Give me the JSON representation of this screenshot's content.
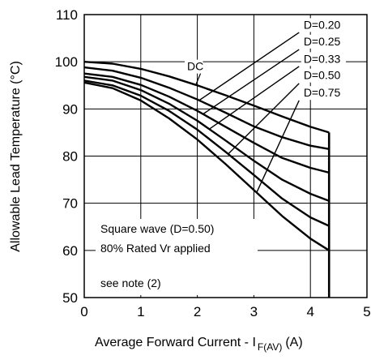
{
  "chart_data": {
    "type": "line",
    "xlabel": "Average Forward Current - I",
    "xlabel_sub": "F(AV)",
    "xlabel_unit": "(A)",
    "ylabel": "Allowable Lead Temperature (°C)",
    "xlim": [
      0,
      5
    ],
    "ylim": [
      50,
      110
    ],
    "xticks": [
      0,
      1,
      2,
      3,
      4,
      5
    ],
    "yticks": [
      50,
      60,
      70,
      80,
      90,
      100,
      110
    ],
    "grid": true,
    "series": [
      {
        "name": "DC",
        "x": [
          0,
          0.5,
          1,
          1.5,
          2,
          2.5,
          3,
          3.5,
          4,
          4.33
        ],
        "y": [
          100,
          99.6,
          98.5,
          96.9,
          95,
          92.9,
          90.7,
          88.4,
          86.2,
          85
        ]
      },
      {
        "name": "D=0.20",
        "x": [
          0,
          0.5,
          1,
          1.5,
          2,
          2.5,
          3,
          3.5,
          4,
          4.33
        ],
        "y": [
          98.8,
          98.1,
          96.6,
          94.5,
          92,
          89.2,
          86.3,
          84,
          82.2,
          81.5
        ]
      },
      {
        "name": "D=0.25",
        "x": [
          0,
          0.5,
          1,
          1.5,
          2,
          2.5,
          3,
          3.5,
          4,
          4.33
        ],
        "y": [
          97.5,
          96.8,
          95.1,
          92.6,
          89.6,
          86.2,
          82.8,
          79.6,
          77.5,
          76.5
        ]
      },
      {
        "name": "D=0.33",
        "x": [
          0,
          0.5,
          1,
          1.5,
          2,
          2.5,
          3,
          3.5,
          4,
          4.33
        ],
        "y": [
          96.8,
          96,
          94,
          91.1,
          87.5,
          83.3,
          79,
          75,
          72,
          70.5
        ]
      },
      {
        "name": "D=0.50",
        "x": [
          0,
          0.5,
          1,
          1.5,
          2,
          2.5,
          3,
          3.5,
          4,
          4.33
        ],
        "y": [
          96,
          95,
          92.8,
          89.6,
          85.6,
          80.9,
          76,
          71,
          67,
          65.2
        ]
      },
      {
        "name": "D=0.75",
        "x": [
          0,
          0.5,
          1,
          1.5,
          2,
          2.5,
          3,
          3.5,
          4,
          4.33
        ],
        "y": [
          95.6,
          94.4,
          91.8,
          88,
          83.5,
          78.3,
          72.8,
          67.3,
          62.5,
          60
        ]
      }
    ],
    "cutoff_x": 4.33,
    "series_labels": [
      {
        "text": "DC",
        "x": 1.82,
        "y": 98.2
      },
      {
        "text": "D=0.20",
        "x": 3.88,
        "y": 107.0
      },
      {
        "text": "D=0.25",
        "x": 3.88,
        "y": 103.5
      },
      {
        "text": "D=0.33",
        "x": 3.88,
        "y": 99.8
      },
      {
        "text": "D=0.50",
        "x": 3.88,
        "y": 96.3
      },
      {
        "text": "D=0.75",
        "x": 3.88,
        "y": 92.6
      }
    ],
    "annotations": [
      "Square wave (D=0.50)",
      "80% Rated Vr applied",
      "see note (2)"
    ]
  }
}
